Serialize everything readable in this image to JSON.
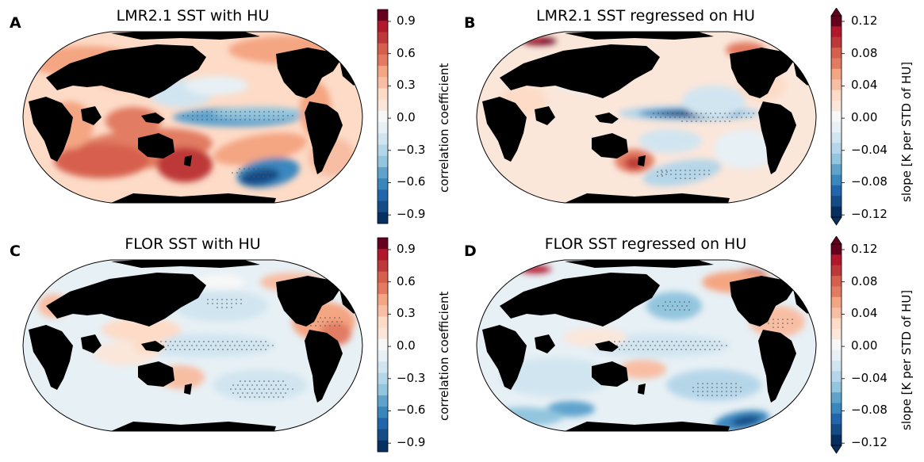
{
  "colors": {
    "land": "#000000",
    "ocean_neutral": "#f7f7f7",
    "scale": [
      "#053061",
      "#134c87",
      "#2166ac",
      "#3a87be",
      "#5fa3cd",
      "#92c5de",
      "#b5d6e9",
      "#d1e5f0",
      "#e7f0f5",
      "#f7f7f7",
      "#fbe6da",
      "#fddbc7",
      "#f8bea4",
      "#f4a582",
      "#e27b62",
      "#d6604d",
      "#bd3838",
      "#b2182b",
      "#67001f"
    ]
  },
  "panels": [
    {
      "id": "A",
      "letter": "A",
      "title": "LMR2.1 SST with HU",
      "colorbar": {
        "label": "correlation coefficient",
        "ticks": [
          "0.9",
          "0.6",
          "0.3",
          "0.0",
          "−0.3",
          "−0.6",
          "−0.9"
        ],
        "extend": "neither"
      },
      "pattern": "lmr_corr"
    },
    {
      "id": "B",
      "letter": "B",
      "title": "LMR2.1 SST regressed on HU",
      "colorbar": {
        "label": "slope [K per STD of HU]",
        "ticks": [
          "0.12",
          "0.08",
          "0.04",
          "0.00",
          "−0.04",
          "−0.08",
          "−0.12"
        ],
        "extend": "both"
      },
      "pattern": "lmr_slope"
    },
    {
      "id": "C",
      "letter": "C",
      "title": "FLOR SST with HU",
      "colorbar": {
        "label": "correlation coefficient",
        "ticks": [
          "0.9",
          "0.6",
          "0.3",
          "0.0",
          "−0.3",
          "−0.6",
          "−0.9"
        ],
        "extend": "neither"
      },
      "pattern": "flor_corr"
    },
    {
      "id": "D",
      "letter": "D",
      "title": "FLOR SST regressed on HU",
      "colorbar": {
        "label": "slope [K per STD of HU]",
        "ticks": [
          "0.12",
          "0.08",
          "0.04",
          "0.00",
          "−0.04",
          "−0.08",
          "−0.12"
        ],
        "extend": "both"
      },
      "pattern": "flor_slope"
    }
  ]
}
